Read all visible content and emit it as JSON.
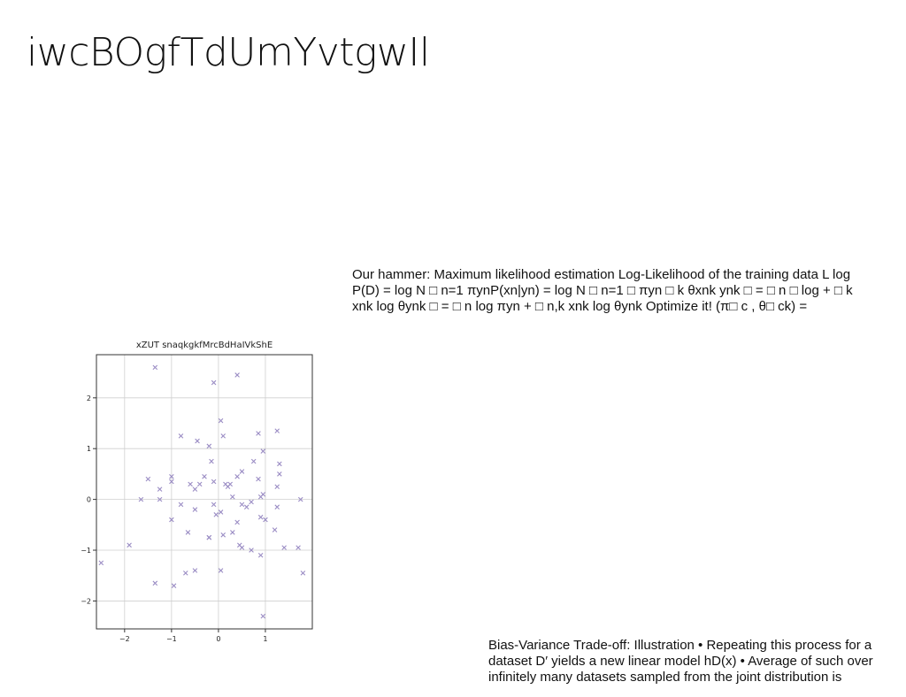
{
  "slide": {
    "title": "iwcBOgfTdUmYvtgwIl",
    "text_top": "Our hammer: Maximum likelihood estimation Log-Likelihood of the training data L log P(D) = log N □ n=1 πynP(xn|yn) = log N □ n=1 □ πyn □ k θxnk ynk □ = □ n □ log + □ k xnk log θynk □ = □ n log πyn + □ n,k xnk log θynk Optimize it! (π□ c , θ□ ck) =",
    "text_bottom": "Bias-Variance Trade-off: Illustration • Repeating this process for a dataset D′ yields a new linear model hD(x) • Average of such over infinitely many datasets sampled from the joint distribution is"
  },
  "chart_data": {
    "type": "scatter",
    "title": "xZUT snaqkgkfMrcBdHaIVkShE",
    "xlabel": "",
    "ylabel": "",
    "xlim": [
      -2.6,
      2.0
    ],
    "ylim": [
      -2.55,
      2.85
    ],
    "xticks": [
      -2,
      -1,
      0,
      1
    ],
    "yticks": [
      -2,
      -1,
      0,
      1,
      2
    ],
    "grid": true,
    "marker": "x",
    "color": "#9a8cc4",
    "x": [
      -1.35,
      0.4,
      -0.1,
      0.05,
      1.25,
      -0.8,
      0.85,
      -0.45,
      0.1,
      0.95,
      -0.2,
      -0.15,
      0.75,
      1.3,
      -1.0,
      -1.0,
      -1.5,
      1.3,
      0.5,
      0.4,
      -0.3,
      -0.1,
      0.15,
      -0.4,
      0.2,
      -0.6,
      0.85,
      -1.25,
      -0.5,
      0.25,
      1.25,
      0.95,
      -1.65,
      -1.25,
      0.9,
      0.3,
      1.75,
      0.7,
      -0.8,
      -0.1,
      0.5,
      1.25,
      0.05,
      -0.05,
      -0.5,
      1.0,
      0.6,
      0.9,
      0.4,
      -0.65,
      -1.0,
      -0.2,
      0.3,
      0.1,
      1.2,
      0.45,
      -1.9,
      -0.2,
      1.4,
      0.5,
      1.7,
      0.7,
      0.9,
      0.05,
      -0.5,
      -0.7,
      -2.5,
      1.8,
      -1.35,
      -0.95,
      0.95
    ],
    "y": [
      2.6,
      2.45,
      2.3,
      1.55,
      1.35,
      1.25,
      1.3,
      1.15,
      1.25,
      0.95,
      1.05,
      0.75,
      0.75,
      0.7,
      0.45,
      0.35,
      0.4,
      0.5,
      0.55,
      0.45,
      0.45,
      0.35,
      0.3,
      0.3,
      0.25,
      0.3,
      0.4,
      0.2,
      0.2,
      0.3,
      0.25,
      0.1,
      0.0,
      0.0,
      0.05,
      0.05,
      0.0,
      -0.05,
      -0.1,
      -0.1,
      -0.1,
      -0.15,
      -0.25,
      -0.3,
      -0.2,
      -0.4,
      -0.15,
      -0.35,
      -0.45,
      -0.65,
      -0.4,
      -0.75,
      -0.65,
      -0.7,
      -0.6,
      -0.9,
      -0.9,
      -0.75,
      -0.95,
      -0.95,
      -0.95,
      -1.0,
      -1.1,
      -1.4,
      -1.4,
      -1.45,
      -1.25,
      -1.45,
      -1.65,
      -1.7,
      -2.3
    ]
  }
}
